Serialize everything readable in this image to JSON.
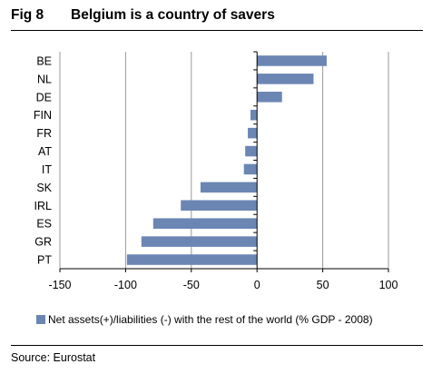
{
  "figure": {
    "label": "Fig 8",
    "title": "Belgium is a country of savers",
    "source": "Source: Eurostat"
  },
  "colors": {
    "bar": "#6b86b3",
    "grid": "#999999",
    "axis": "#000000"
  },
  "chart_data": {
    "type": "bar",
    "orientation": "horizontal",
    "categories": [
      "BE",
      "NL",
      "DE",
      "FIN",
      "FR",
      "AT",
      "IT",
      "SK",
      "IRL",
      "ES",
      "GR",
      "PT"
    ],
    "series": [
      {
        "name": "Net assets(+)/liabilities (-) with the rest of the world (% GDP - 2008)",
        "values": [
          53,
          43,
          19,
          -5,
          -7,
          -9,
          -10,
          -43,
          -58,
          -79,
          -88,
          -99
        ]
      }
    ],
    "xlim": [
      -150,
      100
    ],
    "xticks": [
      -150,
      -100,
      -50,
      0,
      50,
      100
    ],
    "grid": "vertical",
    "legend_position": "bottom"
  }
}
